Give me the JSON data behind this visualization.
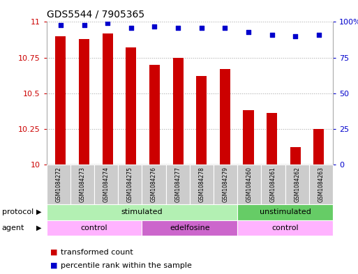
{
  "title": "GDS5544 / 7905365",
  "samples": [
    "GSM1084272",
    "GSM1084273",
    "GSM1084274",
    "GSM1084275",
    "GSM1084276",
    "GSM1084277",
    "GSM1084278",
    "GSM1084279",
    "GSM1084260",
    "GSM1084261",
    "GSM1084262",
    "GSM1084263"
  ],
  "bar_values": [
    10.9,
    10.88,
    10.92,
    10.82,
    10.7,
    10.75,
    10.62,
    10.67,
    10.38,
    10.36,
    10.12,
    10.25
  ],
  "percentile_values": [
    98,
    98,
    99,
    96,
    97,
    96,
    96,
    96,
    93,
    91,
    90,
    91
  ],
  "bar_color": "#cc0000",
  "dot_color": "#0000cc",
  "ylim_left": [
    10,
    11
  ],
  "ylim_right": [
    0,
    100
  ],
  "yticks_left": [
    10,
    10.25,
    10.5,
    10.75,
    11
  ],
  "yticks_right": [
    0,
    25,
    50,
    75,
    100
  ],
  "ytick_labels_right": [
    "0",
    "25",
    "50",
    "75",
    "100%"
  ],
  "protocol_color_stimulated": "#b3f0b3",
  "protocol_color_unstimulated": "#66cc66",
  "agent_color_control": "#ffb3ff",
  "agent_color_edelfosine": "#cc66cc",
  "label_protocol": "protocol",
  "label_agent": "agent",
  "legend_bar_label": "transformed count",
  "legend_dot_label": "percentile rank within the sample",
  "grid_color": "#aaaaaa",
  "bg_color": "#ffffff",
  "tick_bg_color": "#cccccc"
}
